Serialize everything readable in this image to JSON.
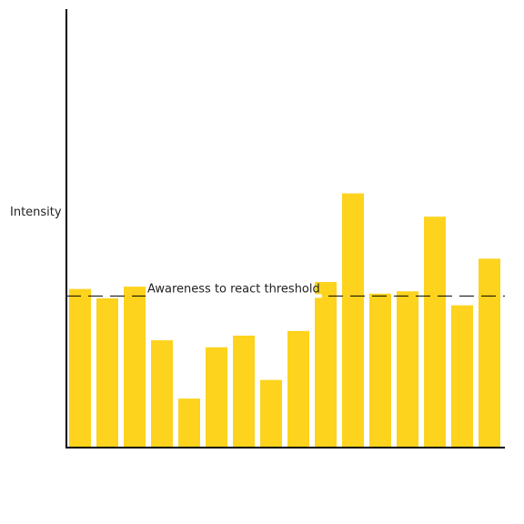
{
  "chart_data": {
    "type": "bar",
    "title": "",
    "xlabel": "",
    "ylabel": "Intensity",
    "categories": [
      "",
      "",
      "",
      "",
      "",
      "",
      "",
      "",
      "",
      "",
      "",
      "",
      "",
      "",
      "",
      ""
    ],
    "values": [
      3.4,
      3.2,
      3.45,
      2.3,
      1.05,
      2.15,
      2.4,
      1.45,
      2.5,
      3.55,
      5.45,
      3.3,
      3.35,
      4.95,
      3.05,
      4.05
    ],
    "ylim": [
      0,
      9.4
    ],
    "threshold": {
      "value": 3.25,
      "label": "Awareness to react threshold"
    },
    "grid": false,
    "legend": "none",
    "colors": {
      "bar": "#FDD31D",
      "axis": "#000000",
      "threshold": "#000000"
    }
  }
}
